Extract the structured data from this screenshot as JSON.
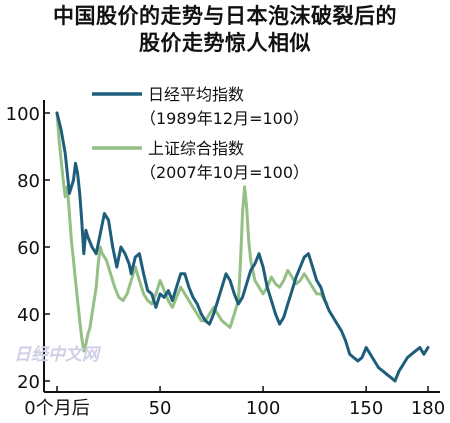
{
  "title_line1": "中国股价的走势与日本泡沫破裂后的",
  "title_line2": "股价走势惊人相似",
  "watermark": "日经中文网",
  "colors": {
    "nikkei": "#1f5e7a",
    "shanghai": "#94bf85"
  },
  "chart_data": {
    "type": "line",
    "title": "中国股价的走势与日本泡沫破裂后的股价走势惊人相似",
    "xlabel": "",
    "ylabel": "",
    "xlim": [
      -5,
      185
    ],
    "ylim": [
      20,
      105
    ],
    "x_ticks": [
      {
        "value": 0,
        "label": "0个月后"
      },
      {
        "value": 50,
        "label": "50"
      },
      {
        "value": 100,
        "label": "100"
      },
      {
        "value": 150,
        "label": "150"
      },
      {
        "value": 180,
        "label": "180"
      }
    ],
    "y_ticks": [
      {
        "value": 20,
        "label": "20"
      },
      {
        "value": 40,
        "label": "40"
      },
      {
        "value": 60,
        "label": "60"
      },
      {
        "value": 80,
        "label": "80"
      },
      {
        "value": 100,
        "label": "100"
      }
    ],
    "grid": false,
    "legend_position": "top-center",
    "series": [
      {
        "name": "日经平均指数",
        "name_sub": "（1989年12月=100）",
        "color": "#1f5e7a",
        "points": [
          [
            0,
            100
          ],
          [
            2,
            95
          ],
          [
            4,
            88
          ],
          [
            6,
            76
          ],
          [
            8,
            80
          ],
          [
            9,
            85
          ],
          [
            10,
            82
          ],
          [
            11,
            76
          ],
          [
            12,
            68
          ],
          [
            13,
            58
          ],
          [
            14,
            65
          ],
          [
            15,
            63
          ],
          [
            17,
            60
          ],
          [
            19,
            58
          ],
          [
            21,
            64
          ],
          [
            23,
            70
          ],
          [
            25,
            68
          ],
          [
            27,
            60
          ],
          [
            29,
            54
          ],
          [
            31,
            60
          ],
          [
            33,
            58
          ],
          [
            35,
            55
          ],
          [
            36,
            52
          ],
          [
            38,
            57
          ],
          [
            40,
            58
          ],
          [
            42,
            52
          ],
          [
            44,
            47
          ],
          [
            46,
            46
          ],
          [
            48,
            42
          ],
          [
            50,
            46
          ],
          [
            52,
            45
          ],
          [
            54,
            47
          ],
          [
            56,
            44
          ],
          [
            58,
            48
          ],
          [
            60,
            52
          ],
          [
            62,
            52
          ],
          [
            64,
            48
          ],
          [
            66,
            45
          ],
          [
            68,
            43
          ],
          [
            70,
            40
          ],
          [
            72,
            38
          ],
          [
            74,
            37
          ],
          [
            76,
            40
          ],
          [
            78,
            44
          ],
          [
            80,
            48
          ],
          [
            82,
            52
          ],
          [
            84,
            50
          ],
          [
            86,
            46
          ],
          [
            88,
            43
          ],
          [
            90,
            45
          ],
          [
            92,
            49
          ],
          [
            94,
            53
          ],
          [
            96,
            55
          ],
          [
            98,
            58
          ],
          [
            100,
            54
          ],
          [
            102,
            48
          ],
          [
            104,
            44
          ],
          [
            106,
            40
          ],
          [
            108,
            37
          ],
          [
            110,
            39
          ],
          [
            112,
            43
          ],
          [
            114,
            47
          ],
          [
            116,
            51
          ],
          [
            118,
            54
          ],
          [
            120,
            57
          ],
          [
            122,
            58
          ],
          [
            124,
            54
          ],
          [
            126,
            50
          ],
          [
            128,
            48
          ],
          [
            130,
            44
          ],
          [
            132,
            41
          ],
          [
            134,
            39
          ],
          [
            136,
            37
          ],
          [
            138,
            35
          ],
          [
            140,
            32
          ],
          [
            142,
            28
          ],
          [
            144,
            27
          ],
          [
            146,
            26
          ],
          [
            148,
            27
          ],
          [
            150,
            30
          ],
          [
            152,
            28
          ],
          [
            154,
            26
          ],
          [
            156,
            24
          ],
          [
            158,
            23
          ],
          [
            160,
            22
          ],
          [
            162,
            21
          ],
          [
            164,
            20
          ],
          [
            166,
            23
          ],
          [
            168,
            25
          ],
          [
            170,
            27
          ],
          [
            172,
            28
          ],
          [
            174,
            29
          ],
          [
            176,
            30
          ],
          [
            178,
            28
          ],
          [
            180,
            30
          ]
        ]
      },
      {
        "name": "上证综合指数",
        "name_sub": "（2007年10月=100）",
        "color": "#94bf85",
        "points": [
          [
            0,
            100
          ],
          [
            1,
            92
          ],
          [
            2,
            86
          ],
          [
            3,
            80
          ],
          [
            4,
            75
          ],
          [
            5,
            78
          ],
          [
            6,
            70
          ],
          [
            7,
            62
          ],
          [
            8,
            56
          ],
          [
            9,
            50
          ],
          [
            10,
            44
          ],
          [
            11,
            38
          ],
          [
            12,
            33
          ],
          [
            13,
            29
          ],
          [
            14,
            31
          ],
          [
            15,
            34
          ],
          [
            16,
            36
          ],
          [
            17,
            40
          ],
          [
            18,
            44
          ],
          [
            19,
            48
          ],
          [
            20,
            55
          ],
          [
            21,
            60
          ],
          [
            22,
            58
          ],
          [
            24,
            56
          ],
          [
            26,
            52
          ],
          [
            28,
            48
          ],
          [
            30,
            45
          ],
          [
            32,
            44
          ],
          [
            34,
            46
          ],
          [
            36,
            50
          ],
          [
            38,
            54
          ],
          [
            40,
            50
          ],
          [
            42,
            46
          ],
          [
            44,
            44
          ],
          [
            46,
            43
          ],
          [
            48,
            46
          ],
          [
            50,
            50
          ],
          [
            52,
            47
          ],
          [
            54,
            44
          ],
          [
            56,
            42
          ],
          [
            58,
            45
          ],
          [
            60,
            48
          ],
          [
            62,
            46
          ],
          [
            64,
            44
          ],
          [
            66,
            42
          ],
          [
            68,
            40
          ],
          [
            70,
            38
          ],
          [
            72,
            38
          ],
          [
            74,
            40
          ],
          [
            76,
            42
          ],
          [
            78,
            40
          ],
          [
            80,
            38
          ],
          [
            82,
            37
          ],
          [
            84,
            36
          ],
          [
            86,
            40
          ],
          [
            88,
            44
          ],
          [
            89,
            55
          ],
          [
            90,
            70
          ],
          [
            91,
            78
          ],
          [
            92,
            72
          ],
          [
            93,
            62
          ],
          [
            94,
            56
          ],
          [
            96,
            50
          ],
          [
            98,
            48
          ],
          [
            100,
            46
          ],
          [
            102,
            48
          ],
          [
            104,
            51
          ],
          [
            106,
            49
          ],
          [
            108,
            48
          ],
          [
            110,
            50
          ],
          [
            112,
            53
          ],
          [
            114,
            51
          ],
          [
            116,
            49
          ],
          [
            118,
            50
          ],
          [
            120,
            52
          ],
          [
            122,
            50
          ],
          [
            124,
            48
          ],
          [
            126,
            46
          ],
          [
            128,
            46
          ],
          [
            130,
            44
          ],
          [
            131,
            43
          ]
        ]
      }
    ]
  }
}
